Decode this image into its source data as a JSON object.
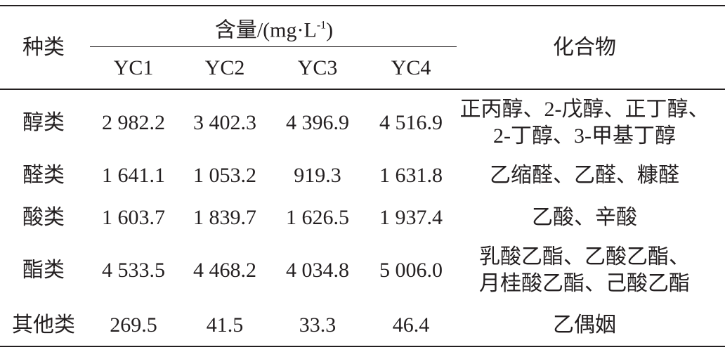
{
  "header": {
    "category": "种类",
    "content": {
      "main": "含量/(mg·L",
      "sup": "-1",
      "close": ")"
    },
    "columns": [
      "YC1",
      "YC2",
      "YC3",
      "YC4"
    ],
    "compound": "化合物"
  },
  "table": {
    "rows": [
      [
        "醇类",
        "2 982.2",
        "3 402.3",
        "4 396.9",
        "4 516.9",
        [
          "正丙醇、2-戊醇、正丁醇、",
          "2-丁醇、3-甲基丁醇"
        ]
      ],
      [
        "醛类",
        "1 641.1",
        "1 053.2",
        "919.3",
        "1 631.8",
        [
          "乙缩醛、乙醛、糠醛"
        ]
      ],
      [
        "酸类",
        "1 603.7",
        "1 839.7",
        "1 626.5",
        "1 937.4",
        [
          "乙酸、辛酸"
        ]
      ],
      [
        "酯类",
        "4 533.5",
        "4 468.2",
        "4 034.8",
        "5 006.0",
        [
          "乳酸乙酯、乙酸乙酯、",
          "月桂酸乙酯、己酸乙酯"
        ]
      ],
      [
        "其他类",
        "269.5",
        "41.5",
        "33.3",
        "46.4",
        [
          "乙偶姻"
        ]
      ]
    ]
  }
}
